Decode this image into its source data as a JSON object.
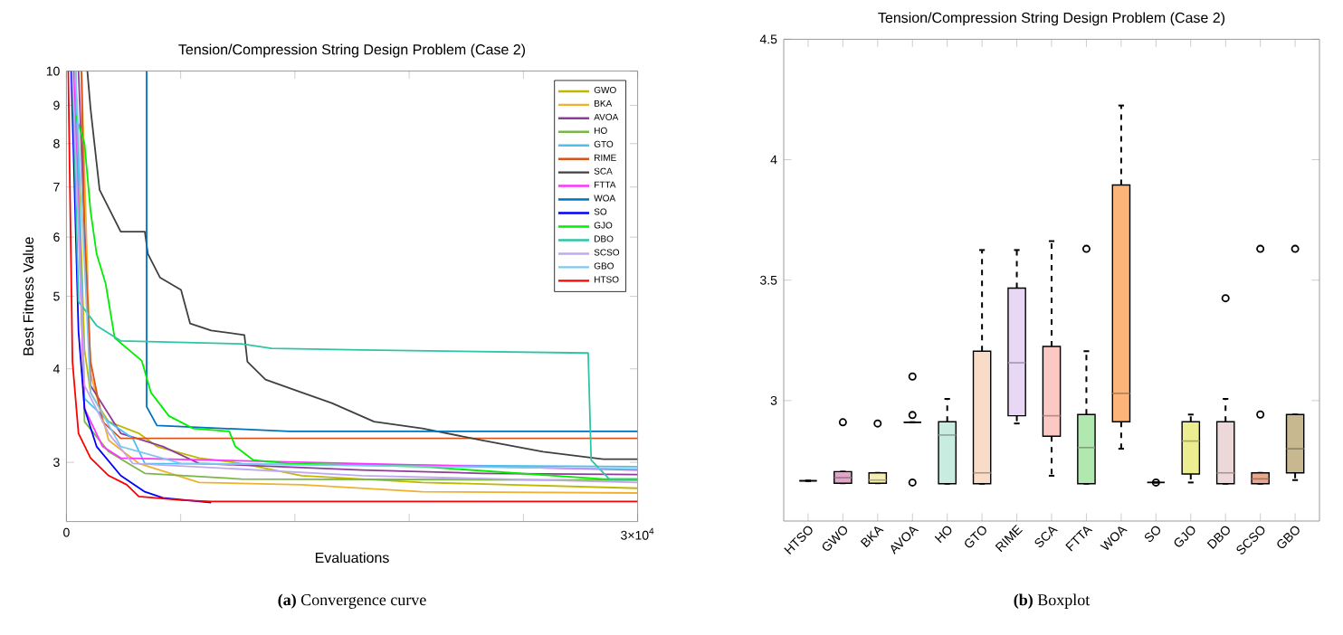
{
  "chart_data": [
    {
      "type": "line",
      "title": "Tension/Compression String Design Problem (Case 2)",
      "xlabel": "Evaluations",
      "ylabel": "Best Fitness Value",
      "xlim": [
        0,
        30000
      ],
      "xticks": [
        {
          "value": 0,
          "label": "0"
        },
        {
          "value": 6000,
          "label": null
        },
        {
          "value": 12000,
          "label": null
        },
        {
          "value": 18000,
          "label": null
        },
        {
          "value": 24000,
          "label": null
        },
        {
          "value": 30000,
          "label": "3×10$^{4}$"
        }
      ],
      "ylim": [
        2.5,
        10
      ],
      "yticks": [
        3,
        4,
        5,
        6,
        7,
        8,
        9,
        10
      ],
      "log": true,
      "legend": "top right",
      "series": [
        {
          "name": "GWO",
          "color": "#c0b800",
          "x": [
            475,
            950,
            1267,
            1584,
            2218,
            3802,
            4752,
            6969,
            9187,
            12355,
            18691,
            30000
          ],
          "values": [
            10,
            4.24,
            3.72,
            3.6,
            3.4,
            3.28,
            3.15,
            3.04,
            2.99,
            2.88,
            2.82,
            2.77
          ]
        },
        {
          "name": "BKA",
          "color": "#f0b030",
          "x": [
            792,
            1267,
            2218,
            3802,
            6969,
            12355,
            18691,
            30000
          ],
          "values": [
            10,
            3.94,
            3.21,
            2.99,
            2.82,
            2.8,
            2.74,
            2.73
          ]
        },
        {
          "name": "AVOA",
          "color": "#8e3c9a",
          "x": [
            634,
            1267,
            2851,
            5068,
            6969,
            15523,
            21859,
            30000
          ],
          "values": [
            10,
            3.8,
            3.28,
            3.15,
            2.99,
            2.93,
            2.9,
            2.89
          ]
        },
        {
          "name": "HO",
          "color": "#7ab648",
          "x": [
            475,
            950,
            2218,
            4118,
            9187,
            30000
          ],
          "values": [
            10,
            3.4,
            3.1,
            2.9,
            2.85,
            2.84
          ]
        },
        {
          "name": "GTO",
          "color": "#4dbeee",
          "x": [
            475,
            950,
            2218,
            3485,
            4118,
            30000
          ],
          "values": [
            10,
            3.65,
            3.4,
            3.23,
            2.99,
            2.96
          ]
        },
        {
          "name": "RIME",
          "color": "#d95319",
          "x": [
            792,
            950,
            1267,
            1900,
            2851,
            30000
          ],
          "values": [
            10,
            5.93,
            4.09,
            3.4,
            3.23,
            3.23
          ]
        },
        {
          "name": "SCA",
          "color": "#404040",
          "x": [
            1100,
            1267,
            1742,
            2851,
            4118,
            4277,
            4910,
            6019,
            6494,
            7603,
            9346,
            9504,
            10455,
            12355,
            13939,
            16157,
            18691,
            21859,
            25026,
            28194,
            30000
          ],
          "values": [
            10,
            8.91,
            6.94,
            6.1,
            6.1,
            5.7,
            5.3,
            5.1,
            4.6,
            4.5,
            4.44,
            4.09,
            3.87,
            3.72,
            3.6,
            3.4,
            3.33,
            3.21,
            3.1,
            3.03,
            3.03
          ]
        },
        {
          "name": "FTTA",
          "color": "#ff33ff",
          "x": [
            380,
            950,
            1900,
            2851,
            30000
          ],
          "values": [
            10,
            3.54,
            3.15,
            3.04,
            2.93
          ]
        },
        {
          "name": "WOA",
          "color": "#0072bd",
          "x": [
            4213,
            4213,
            4752,
            11721,
            30000
          ],
          "values": [
            10,
            3.56,
            3.36,
            3.3,
            3.3
          ]
        },
        {
          "name": "SO",
          "color": "#0000ff",
          "x": [
            254,
            634,
            950,
            1584,
            2851,
            4118,
            5068,
            7603
          ],
          "values": [
            10,
            4.49,
            3.54,
            3.15,
            2.88,
            2.74,
            2.69,
            2.65
          ]
        },
        {
          "name": "GJO",
          "color": "#00ee00",
          "x": [
            475,
            950,
            1267,
            1584,
            2059,
            2534,
            3960,
            4435,
            5385,
            6652,
            8553,
            8870,
            9821,
            11721,
            18691,
            28194,
            30000
          ],
          "values": [
            8.75,
            8.0,
            6.5,
            5.7,
            5.2,
            4.4,
            4.1,
            3.72,
            3.46,
            3.33,
            3.3,
            3.15,
            3.02,
            2.99,
            2.96,
            2.85,
            2.85
          ]
        },
        {
          "name": "DBO",
          "color": "#2ec4a6",
          "x": [
            317,
            634,
            1584,
            2851,
            9187,
            10771,
            15523,
            27402,
            27560,
            28510,
            30000
          ],
          "values": [
            10,
            4.92,
            4.57,
            4.36,
            4.32,
            4.26,
            4.24,
            4.2,
            3.02,
            2.85,
            2.85
          ]
        },
        {
          "name": "SCSO",
          "color": "#c0a8f0",
          "x": [
            317,
            950,
            2218,
            3485,
            15523,
            30000
          ],
          "values": [
            10,
            3.8,
            3.28,
            2.99,
            2.88,
            2.82
          ]
        },
        {
          "name": "GBO",
          "color": "#7ec8f0",
          "x": [
            475,
            1267,
            2851,
            6019,
            30000
          ],
          "values": [
            10,
            3.72,
            3.15,
            2.99,
            2.94
          ]
        },
        {
          "name": "HTSO",
          "color": "#ff0000",
          "x": [
            95,
            317,
            634,
            1267,
            2218,
            3168,
            3802,
            6019,
            7603,
            30000
          ],
          "values": [
            10,
            4.09,
            3.28,
            3.04,
            2.88,
            2.8,
            2.7,
            2.67,
            2.66,
            2.66
          ]
        }
      ],
      "annotations": [
        "**(a)** Convergence curve"
      ]
    },
    {
      "type": "box",
      "title": "Tension/Compression String Design Problem (Case 2)",
      "categories": [
        "HTSO",
        "GWO",
        "BKA",
        "AVOA",
        "HO",
        "GTO",
        "RIME",
        "SCA",
        "FTTA",
        "WOA",
        "SO",
        "GJO",
        "DBO",
        "SCSO",
        "GBO"
      ],
      "colors": [
        "#000000",
        "#e0a8c8",
        "#f5eeb0",
        "#000000",
        "#c8ece0",
        "#f8dcc8",
        "#e8d8f5",
        "#fcc8c4",
        "#b0e8b0",
        "#fcb478",
        "#000000",
        "#ecec90",
        "#ecd8d8",
        "#e8a890",
        "#c8b890"
      ],
      "boxes": [
        {
          "low": 2.667,
          "q1": 2.667,
          "median": 2.667,
          "q3": 2.667,
          "high": 2.667
        },
        {
          "low": 2.657,
          "q1": 2.657,
          "median": 2.68,
          "q3": 2.705,
          "high": 2.705,
          "outliers": [
            2.91
          ]
        },
        {
          "low": 2.657,
          "q1": 2.657,
          "median": 2.67,
          "q3": 2.7,
          "high": 2.7,
          "outliers": [
            2.905
          ]
        },
        {
          "low": 2.91,
          "q1": 2.91,
          "median": 2.91,
          "q3": 2.91,
          "high": 2.91,
          "outliers": [
            3.1,
            2.94,
            2.66
          ]
        },
        {
          "low": 2.655,
          "q1": 2.655,
          "median": 2.857,
          "q3": 2.912,
          "high": 3.007
        },
        {
          "low": 2.655,
          "q1": 2.655,
          "median": 2.7,
          "q3": 3.205,
          "high": 3.625
        },
        {
          "low": 2.905,
          "q1": 2.937,
          "median": 3.157,
          "q3": 3.467,
          "high": 3.625
        },
        {
          "low": 2.688,
          "q1": 2.852,
          "median": 2.937,
          "q3": 3.225,
          "high": 3.662
        },
        {
          "low": 2.655,
          "q1": 2.655,
          "median": 2.805,
          "q3": 2.942,
          "high": 3.205,
          "outliers": [
            3.63
          ]
        },
        {
          "low": 2.8,
          "q1": 2.912,
          "median": 3.03,
          "q3": 3.895,
          "high": 4.225
        },
        {
          "low": 2.66,
          "q1": 2.66,
          "median": 2.66,
          "q3": 2.66,
          "high": 2.66,
          "outliers": [
            2.66
          ]
        },
        {
          "low": 2.66,
          "q1": 2.695,
          "median": 2.832,
          "q3": 2.912,
          "high": 2.942
        },
        {
          "low": 2.655,
          "q1": 2.655,
          "median": 2.7,
          "q3": 2.912,
          "high": 3.007,
          "outliers": [
            3.425
          ]
        },
        {
          "low": 2.655,
          "q1": 2.655,
          "median": 2.675,
          "q3": 2.7,
          "high": 2.7,
          "outliers": [
            3.63,
            2.942
          ]
        },
        {
          "low": 2.67,
          "q1": 2.7,
          "median": 2.8,
          "q3": 2.942,
          "high": 2.942,
          "outliers": [
            3.63
          ]
        }
      ],
      "ylim": [
        2.5,
        4.5
      ],
      "yticks": [
        3,
        3.5,
        4,
        4.5
      ],
      "annotations": [
        "**(b)** Boxplot"
      ]
    }
  ]
}
